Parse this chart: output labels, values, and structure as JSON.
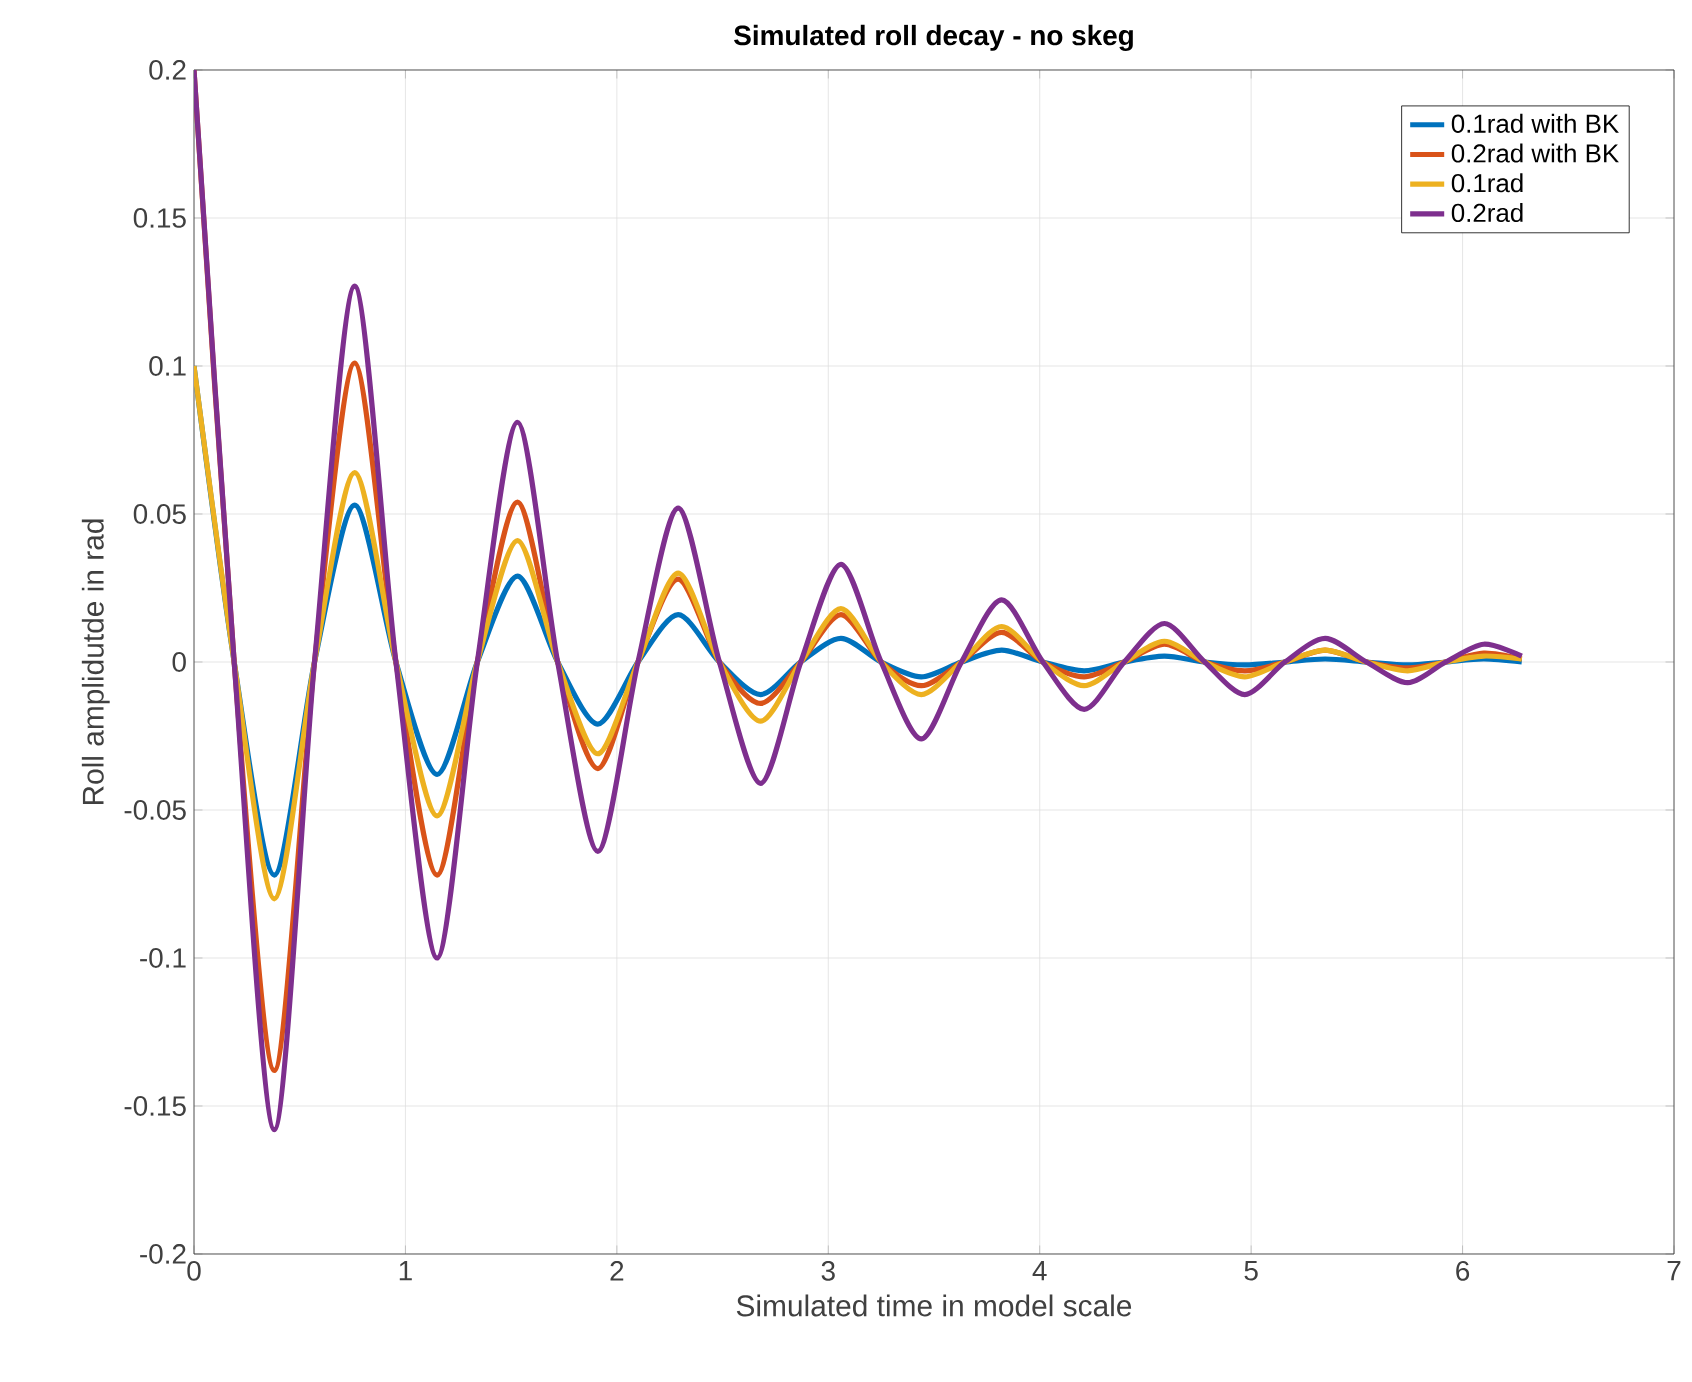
{
  "chart_data": {
    "type": "line",
    "title": "Simulated roll decay - no skeg",
    "xlabel": "Simulated time in model scale",
    "ylabel": "Roll amplidutde in rad",
    "x": [
      0,
      0.19,
      0.38,
      0.57,
      0.76,
      0.955,
      1.15,
      1.34,
      1.53,
      1.72,
      1.91,
      2.1,
      2.29,
      2.485,
      2.68,
      2.87,
      3.06,
      3.25,
      3.44,
      3.63,
      3.82,
      4.015,
      4.21,
      4.4,
      4.59,
      4.78,
      4.97,
      5.16,
      5.35,
      5.545,
      5.74,
      5.92,
      6.1,
      6.28
    ],
    "series": [
      {
        "name": "0.1rad with BK",
        "color": "#0072bd",
        "values": [
          0.1,
          0,
          -0.072,
          0,
          0.053,
          0,
          -0.038,
          0,
          0.029,
          0,
          -0.021,
          0,
          0.016,
          0,
          -0.011,
          0,
          0.008,
          0,
          -0.005,
          0,
          0.004,
          0,
          -0.003,
          0,
          0.002,
          0,
          -0.001,
          0,
          0.001,
          0,
          -0.001,
          0,
          0.001,
          0
        ]
      },
      {
        "name": "0.2rad with BK",
        "color": "#d95319",
        "values": [
          0.2,
          0,
          -0.138,
          0,
          0.101,
          0,
          -0.072,
          0,
          0.054,
          0,
          -0.036,
          0,
          0.028,
          0,
          -0.014,
          0,
          0.016,
          0,
          -0.008,
          0,
          0.01,
          0,
          -0.005,
          0,
          0.006,
          0,
          -0.003,
          0,
          0.004,
          0,
          -0.002,
          0,
          0.003,
          0.001
        ]
      },
      {
        "name": "0.1rad",
        "color": "#edb120",
        "values": [
          0.1,
          0,
          -0.08,
          0,
          0.064,
          0,
          -0.052,
          0,
          0.041,
          0,
          -0.031,
          0,
          0.03,
          0,
          -0.02,
          0,
          0.018,
          0,
          -0.011,
          0,
          0.012,
          0,
          -0.008,
          0,
          0.007,
          0,
          -0.005,
          0,
          0.004,
          0,
          -0.003,
          0,
          0.002,
          0.001
        ]
      },
      {
        "name": "0.2rad",
        "color": "#7e2f8e",
        "values": [
          0.2,
          0,
          -0.158,
          0,
          0.127,
          0,
          -0.1,
          0,
          0.081,
          0,
          -0.064,
          0,
          0.052,
          0,
          -0.041,
          0,
          0.033,
          0,
          -0.026,
          0,
          0.021,
          0,
          -0.016,
          0,
          0.013,
          0,
          -0.011,
          0,
          0.008,
          0,
          -0.007,
          0,
          0.006,
          0.002
        ]
      }
    ],
    "xlim": [
      0,
      7
    ],
    "ylim": [
      -0.2,
      0.2
    ],
    "xticks": [
      0,
      1,
      2,
      3,
      4,
      5,
      6,
      7
    ],
    "yticks": [
      -0.2,
      -0.15,
      -0.1,
      -0.05,
      0,
      0.05,
      0.1,
      0.15,
      0.2
    ],
    "grid": true,
    "legend": "top right",
    "line_style": "solid",
    "marker": "none"
  }
}
